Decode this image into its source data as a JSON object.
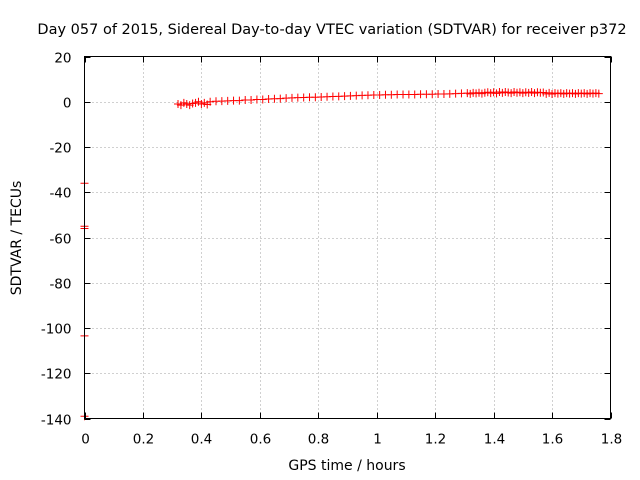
{
  "chart_data": {
    "type": "scatter",
    "title": "Day 057 of 2015, Sidereal Day-to-day VTEC variation (SDTVAR) for receiver p372",
    "xlabel": "GPS time / hours",
    "ylabel": "SDTVAR / TECUs",
    "xlim": [
      0,
      1.8
    ],
    "ylim": [
      -140,
      20
    ],
    "x_ticks": [
      0,
      0.2,
      0.4,
      0.6,
      0.8,
      1,
      1.2,
      1.4,
      1.6,
      1.8
    ],
    "x_tick_labels": [
      "0",
      "0.2",
      "0.4",
      "0.6",
      "0.8",
      "1",
      "1.2",
      "1.4",
      "1.6",
      "1.8"
    ],
    "y_ticks": [
      20,
      0,
      -20,
      -40,
      -60,
      -80,
      -100,
      -120,
      -140
    ],
    "y_tick_labels": [
      "20",
      "0",
      "-20",
      "-40",
      "-60",
      "-80",
      "-100",
      "-120",
      "-140"
    ],
    "grid": true,
    "marker": "+",
    "series": [
      {
        "name": "SDTVAR",
        "color": "#ff0000",
        "points": [
          [
            0.0,
            -36
          ],
          [
            0.0,
            -55
          ],
          [
            0.0,
            -56
          ],
          [
            0.0,
            -103.5
          ],
          [
            0.0,
            -139
          ],
          [
            0.32,
            -1
          ],
          [
            0.33,
            -1.5
          ],
          [
            0.34,
            -0.5
          ],
          [
            0.35,
            -1
          ],
          [
            0.36,
            -1.5
          ],
          [
            0.37,
            -0.8
          ],
          [
            0.38,
            -0.5
          ],
          [
            0.39,
            0
          ],
          [
            0.4,
            -1
          ],
          [
            0.41,
            -0.5
          ],
          [
            0.42,
            -1.2
          ],
          [
            0.43,
            0
          ],
          [
            0.45,
            0.2
          ],
          [
            0.47,
            0.3
          ],
          [
            0.49,
            0.4
          ],
          [
            0.51,
            0.5
          ],
          [
            0.53,
            0.5
          ],
          [
            0.55,
            0.8
          ],
          [
            0.57,
            0.8
          ],
          [
            0.59,
            1
          ],
          [
            0.61,
            1
          ],
          [
            0.63,
            1.2
          ],
          [
            0.65,
            1.3
          ],
          [
            0.67,
            1.4
          ],
          [
            0.69,
            1.6
          ],
          [
            0.71,
            1.7
          ],
          [
            0.73,
            1.8
          ],
          [
            0.75,
            1.9
          ],
          [
            0.77,
            2
          ],
          [
            0.79,
            2
          ],
          [
            0.81,
            2.1
          ],
          [
            0.83,
            2.2
          ],
          [
            0.85,
            2.3
          ],
          [
            0.87,
            2.4
          ],
          [
            0.89,
            2.5
          ],
          [
            0.91,
            2.6
          ],
          [
            0.93,
            2.7
          ],
          [
            0.95,
            2.8
          ],
          [
            0.97,
            2.9
          ],
          [
            0.99,
            3
          ],
          [
            1.01,
            3
          ],
          [
            1.03,
            3.1
          ],
          [
            1.05,
            3.1
          ],
          [
            1.07,
            3.2
          ],
          [
            1.09,
            3.2
          ],
          [
            1.11,
            3.2
          ],
          [
            1.13,
            3.2
          ],
          [
            1.15,
            3.3
          ],
          [
            1.17,
            3.3
          ],
          [
            1.19,
            3.3
          ],
          [
            1.21,
            3.4
          ],
          [
            1.23,
            3.4
          ],
          [
            1.25,
            3.5
          ],
          [
            1.27,
            3.6
          ],
          [
            1.29,
            3.7
          ],
          [
            1.31,
            3.8
          ],
          [
            1.32,
            3.5
          ],
          [
            1.33,
            3.9
          ],
          [
            1.34,
            3.7
          ],
          [
            1.35,
            4
          ],
          [
            1.36,
            3.6
          ],
          [
            1.37,
            4
          ],
          [
            1.38,
            4.2
          ],
          [
            1.39,
            3.8
          ],
          [
            1.4,
            4.2
          ],
          [
            1.41,
            3.7
          ],
          [
            1.42,
            4.3
          ],
          [
            1.43,
            3.9
          ],
          [
            1.44,
            4.3
          ],
          [
            1.45,
            4.1
          ],
          [
            1.46,
            3.8
          ],
          [
            1.47,
            4.3
          ],
          [
            1.48,
            4
          ],
          [
            1.49,
            4.2
          ],
          [
            1.5,
            3.8
          ],
          [
            1.51,
            4.2
          ],
          [
            1.52,
            3.9
          ],
          [
            1.53,
            4.3
          ],
          [
            1.54,
            3.8
          ],
          [
            1.55,
            4.2
          ],
          [
            1.56,
            4
          ],
          [
            1.57,
            4.1
          ],
          [
            1.58,
            3.5
          ],
          [
            1.59,
            3.9
          ],
          [
            1.6,
            3.4
          ],
          [
            1.61,
            3.8
          ],
          [
            1.62,
            3.6
          ],
          [
            1.63,
            3.8
          ],
          [
            1.64,
            3.5
          ],
          [
            1.65,
            3.8
          ],
          [
            1.66,
            3.6
          ],
          [
            1.67,
            3.8
          ],
          [
            1.68,
            3.5
          ],
          [
            1.69,
            3.8
          ],
          [
            1.7,
            3.6
          ],
          [
            1.71,
            3.8
          ],
          [
            1.72,
            3.5
          ],
          [
            1.73,
            3.8
          ],
          [
            1.74,
            3.6
          ],
          [
            1.75,
            3.8
          ],
          [
            1.76,
            3.6
          ]
        ]
      }
    ]
  }
}
